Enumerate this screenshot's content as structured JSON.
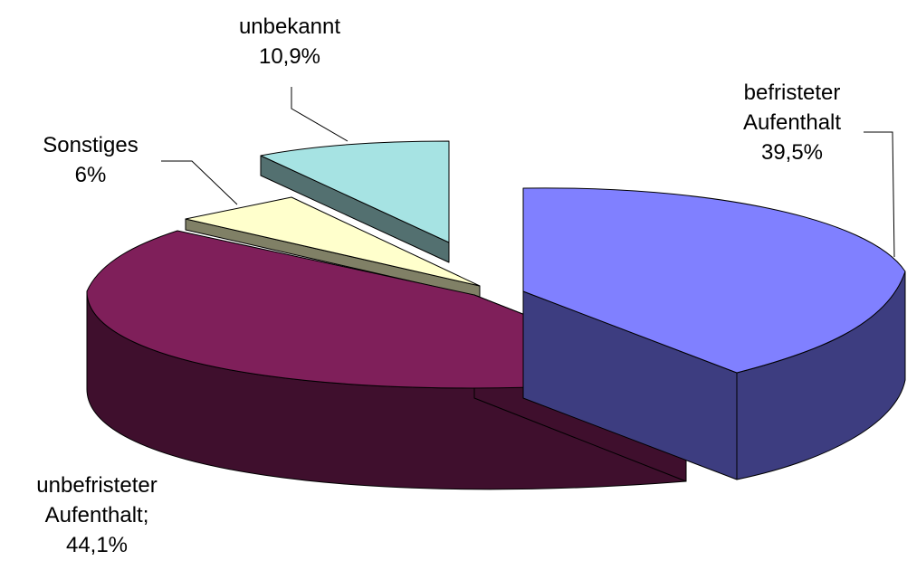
{
  "chart_data": {
    "type": "pie",
    "style": "3d-exploded",
    "slices": [
      {
        "label_lines": [
          "befristeter",
          "Aufenthalt"
        ],
        "value_text": "39,5%",
        "value": 39.5,
        "top_color": "#8080ff",
        "side_color": "#3d3d80"
      },
      {
        "label_lines": [
          "unbefristeter",
          "Aufenthalt;"
        ],
        "value_text": "44,1%",
        "value": 44.1,
        "top_color": "#7f1f5a",
        "side_color": "#3f0f2d"
      },
      {
        "label_lines": [
          "Sonstiges"
        ],
        "value_text": "6%",
        "value": 6,
        "top_color": "#ffffcc",
        "side_color": "#808066"
      },
      {
        "label_lines": [
          "unbekannt"
        ],
        "value_text": "10,9%",
        "value": 10.9,
        "top_color": "#a6e3e3",
        "side_color": "#537070"
      }
    ]
  }
}
